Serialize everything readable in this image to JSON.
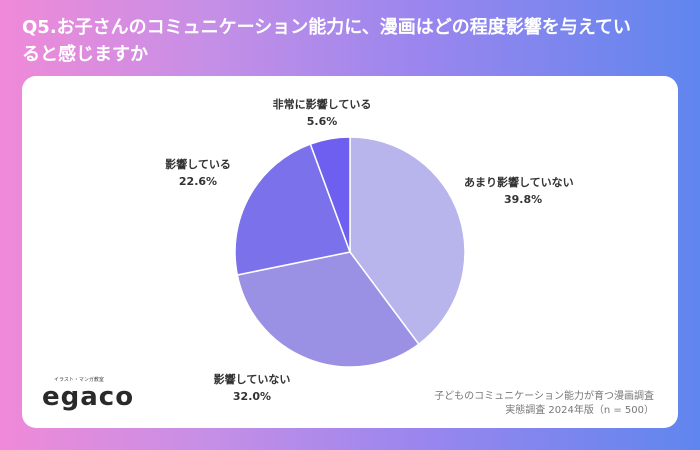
{
  "title": "Q5.お子さんのコミュニケーション能力に、漫画はどの程度影響を与えているると感じますか",
  "title_line1": "Q5.お子さんのコミュニケーション能力に、漫画はどの程度影響を与えてい",
  "title_line2": "ると感じますか",
  "logo": {
    "tagline": "イラスト・マンガ教室",
    "wordmark": "egaco"
  },
  "source": {
    "line1": "子どものコミュニケーション能力が育つ漫画調査",
    "line2": "実態調査 2024年版（n = 500）"
  },
  "chart_data": {
    "type": "pie",
    "categories": [
      "あまり影響していない",
      "影響していない",
      "影響している",
      "非常に影響している"
    ],
    "values": [
      39.8,
      32.0,
      22.6,
      5.6
    ],
    "value_labels": [
      "39.8%",
      "32.0%",
      "22.6%",
      "5.6%"
    ],
    "colors": [
      "#b8b4ec",
      "#9b91e4",
      "#7b71ea",
      "#6f5ff0"
    ],
    "start_angle_deg": 0,
    "direction": "clockwise"
  }
}
